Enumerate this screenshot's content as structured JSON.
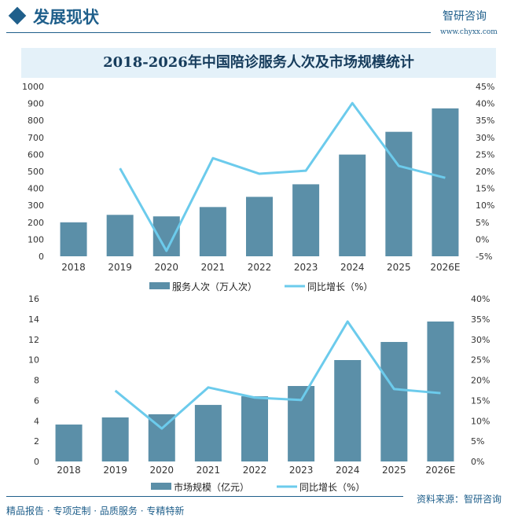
{
  "header": {
    "title": "发展现状",
    "logo_text": "智研咨询",
    "logo_url": "www.chyxx.com"
  },
  "title": "2018-2026年中国陪诊服务人次及市场规模统计",
  "footer": {
    "source": "资料来源：智研咨询",
    "slogan": "精品报告 · 专项定制 · 品质服务 · 专精特新"
  },
  "chart_data": [
    {
      "type": "bar+line",
      "categories": [
        "2018",
        "2019",
        "2020",
        "2021",
        "2022",
        "2023",
        "2024",
        "2025",
        "2026E"
      ],
      "series": [
        {
          "name": "服务人次（万人次）",
          "type": "bar",
          "axis": "left",
          "color": "#5b8fa8",
          "values": [
            200,
            244,
            235,
            290,
            350,
            424,
            599,
            733,
            871
          ]
        },
        {
          "name": "同比增长（%）",
          "type": "line",
          "axis": "right",
          "color": "#6ccbec",
          "values": [
            null,
            20.9,
            -3.4,
            23.9,
            19.3,
            20.2,
            40.1,
            21.6,
            18.1
          ]
        }
      ],
      "yleft": {
        "ylim": [
          0,
          1000
        ],
        "ticks": [
          "0",
          "100",
          "200",
          "300",
          "400",
          "500",
          "600",
          "700",
          "800",
          "900",
          "1000"
        ]
      },
      "yright": {
        "ylim": [
          -5,
          45
        ],
        "ticks": [
          "-5%",
          "0%",
          "5%",
          "10%",
          "15%",
          "20%",
          "25%",
          "30%",
          "35%",
          "40%",
          "45%"
        ]
      },
      "legend": "bottom",
      "grid": false
    },
    {
      "type": "bar+line",
      "categories": [
        "2018",
        "2019",
        "2020",
        "2021",
        "2022",
        "2023",
        "2024",
        "2025",
        "2026E"
      ],
      "series": [
        {
          "name": "市场规模（亿元）",
          "type": "bar",
          "axis": "left",
          "color": "#5b8fa8",
          "values": [
            3.63,
            4.33,
            4.64,
            5.56,
            6.41,
            7.42,
            9.97,
            11.75,
            13.76
          ]
        },
        {
          "name": "同比增长（%）",
          "type": "line",
          "axis": "right",
          "color": "#6ccbec",
          "values": [
            null,
            17.4,
            8.1,
            18.2,
            15.7,
            15.1,
            34.4,
            17.8,
            16.8
          ]
        }
      ],
      "yleft": {
        "ylim": [
          0,
          16
        ],
        "ticks": [
          "0",
          "2",
          "4",
          "6",
          "8",
          "10",
          "12",
          "14",
          "16"
        ]
      },
      "yright": {
        "ylim": [
          0,
          40
        ],
        "ticks": [
          "0%",
          "5%",
          "10%",
          "15%",
          "20%",
          "25%",
          "30%",
          "35%",
          "40%"
        ]
      },
      "legend": "bottom",
      "grid": false
    }
  ]
}
